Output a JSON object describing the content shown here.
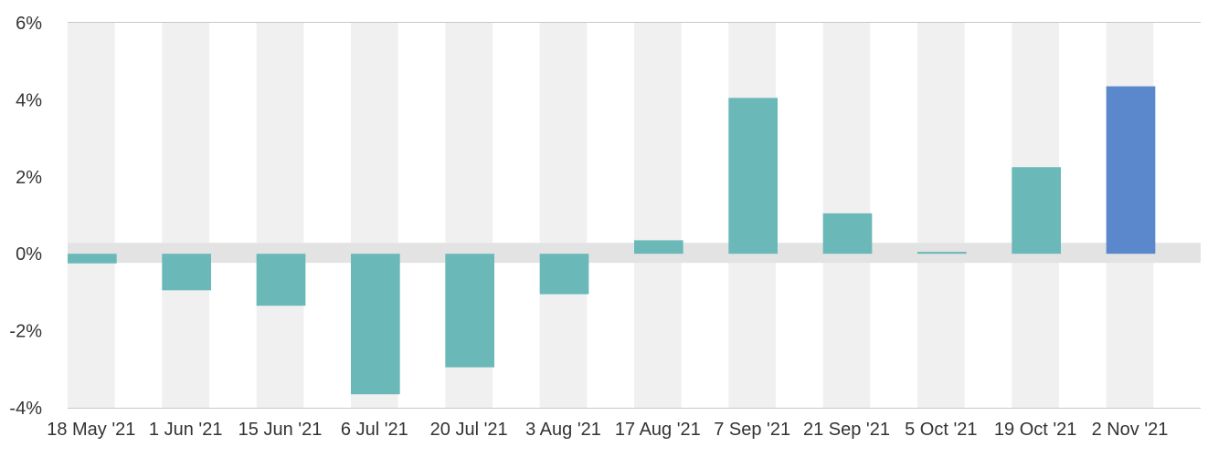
{
  "chart_data": {
    "type": "bar",
    "categories": [
      "18 May '21",
      "1 Jun '21",
      "15 Jun '21",
      "6 Jul '21",
      "20 Jul '21",
      "3 Aug '21",
      "17 Aug '21",
      "7 Sep '21",
      "21 Sep '21",
      "5 Oct '21",
      "19 Oct '21",
      "2 Nov '21"
    ],
    "series": [
      {
        "values": [
          -0.25,
          -0.95,
          -1.35,
          -3.65,
          -2.95,
          -1.05,
          0.35,
          4.05,
          1.05,
          0.05,
          2.25,
          4.35
        ]
      }
    ],
    "highlight_index": 11,
    "ylim": [
      -4,
      6
    ],
    "yticks": [
      6,
      4,
      2,
      0,
      -2,
      -4
    ],
    "ytick_labels": [
      "6%",
      "4%",
      "2%",
      "0%",
      "-2%",
      "-4%"
    ],
    "title": "",
    "xlabel": "",
    "ylabel": "",
    "grid": false,
    "legend": "none",
    "colors": {
      "bar": "#6bb8b9",
      "highlight": "#5b87cc",
      "band": "#f0f0f0",
      "zero_band": "#e3e3e3",
      "axis": "#c8c8c8",
      "text": "#333333"
    }
  }
}
